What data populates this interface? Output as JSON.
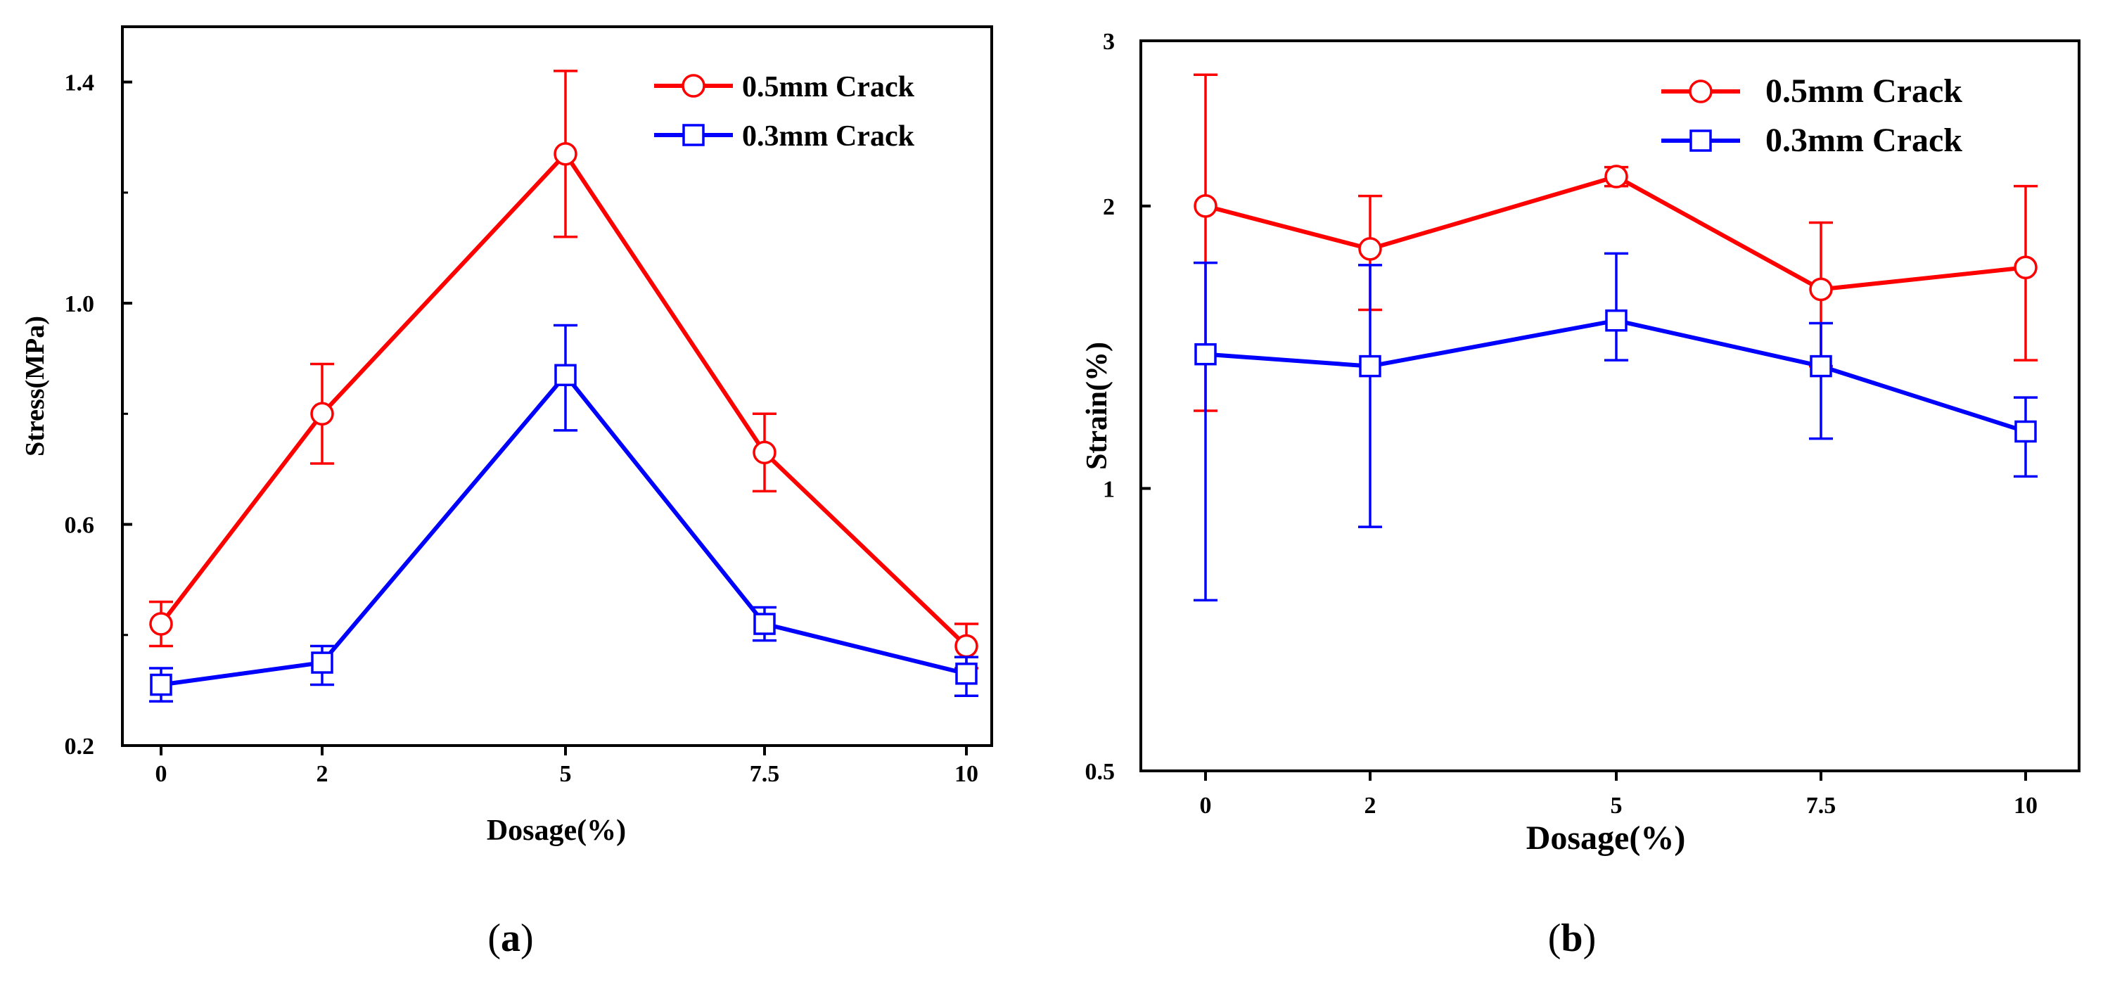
{
  "chart_data": [
    {
      "type": "line",
      "panel": "a",
      "caption_letter": "a",
      "title": "",
      "xlabel": "Dosage(%)",
      "ylabel": "Stress(MPa)",
      "x_scale": "categorical",
      "y_scale": "linear",
      "categories": [
        "0",
        "2",
        "5",
        "7.5",
        "10"
      ],
      "ylim": [
        0.2,
        1.5
      ],
      "yticks": [
        0.2,
        0.6,
        1.0,
        1.4
      ],
      "ytick_labels": [
        "0.2",
        "0.6",
        "1.0",
        "1.4"
      ],
      "legend_position": "top-right",
      "series": [
        {
          "name": "0.5mm Crack",
          "color": "#ff0000",
          "marker": "circle",
          "values": [
            0.42,
            0.8,
            1.27,
            0.73,
            0.38
          ],
          "err_low": [
            0.38,
            0.71,
            1.12,
            0.66,
            0.34
          ],
          "err_high": [
            0.46,
            0.89,
            1.42,
            0.8,
            0.42
          ]
        },
        {
          "name": "0.3mm Crack",
          "color": "#0000ff",
          "marker": "square",
          "values": [
            0.31,
            0.35,
            0.87,
            0.42,
            0.33
          ],
          "err_low": [
            0.28,
            0.31,
            0.77,
            0.39,
            0.29
          ],
          "err_high": [
            0.34,
            0.38,
            0.96,
            0.45,
            0.36
          ]
        }
      ]
    },
    {
      "type": "line",
      "panel": "b",
      "caption_letter": "b",
      "title": "",
      "xlabel": "Dosage(%)",
      "ylabel": "Strain(%)",
      "x_scale": "categorical",
      "y_scale": "log",
      "categories": [
        "0",
        "2",
        "5",
        "7.5",
        "10"
      ],
      "ylim": [
        0.5,
        3
      ],
      "yticks": [
        0.5,
        1,
        2,
        3
      ],
      "ytick_labels": [
        "0.5",
        "1",
        "2",
        "3"
      ],
      "legend_position": "top-right",
      "series": [
        {
          "name": "0.5mm Crack",
          "color": "#ff0000",
          "marker": "circle",
          "values": [
            2.0,
            1.8,
            2.15,
            1.63,
            1.72
          ],
          "err_low": [
            1.21,
            1.55,
            2.1,
            1.35,
            1.37
          ],
          "err_high": [
            2.76,
            2.05,
            2.2,
            1.92,
            2.1
          ]
        },
        {
          "name": "0.3mm Crack",
          "color": "#0000ff",
          "marker": "square",
          "values": [
            1.39,
            1.35,
            1.51,
            1.35,
            1.15
          ],
          "err_low": [
            0.76,
            0.91,
            1.37,
            1.13,
            1.03
          ],
          "err_high": [
            1.74,
            1.73,
            1.78,
            1.5,
            1.25
          ]
        }
      ]
    }
  ]
}
